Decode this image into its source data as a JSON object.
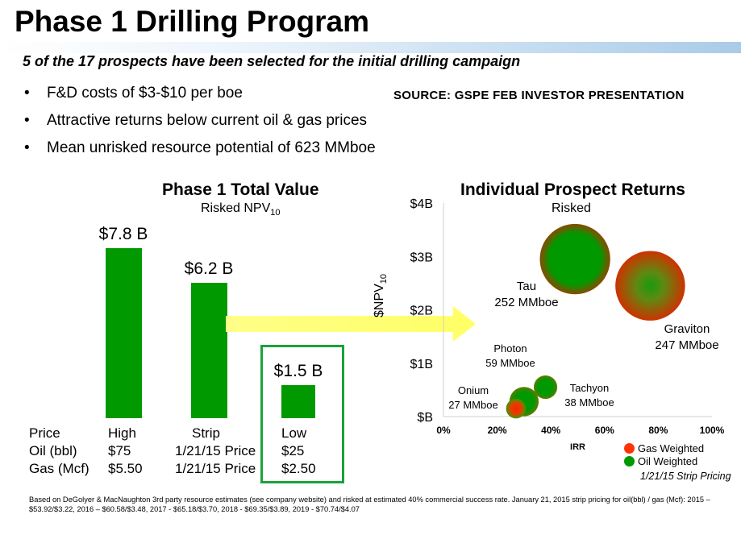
{
  "title": "Phase 1 Drilling Program",
  "subtitle": "5 of the 17 prospects have been selected for the initial drilling campaign",
  "bullets": [
    "F&D costs of $3-$10 per boe",
    "Attractive returns below current oil & gas prices",
    "Mean unrisked resource potential of 623 MMboe"
  ],
  "source": "SOURCE: GSPE FEB INVESTOR PRESENTATION",
  "left_chart": {
    "title": "Phase 1 Total Value",
    "subtitle": "Risked NPV",
    "subtitle_sub": "10"
  },
  "price_table": {
    "row_labels": [
      "Price",
      "Oil (bbl)",
      "Gas (Mcf)"
    ],
    "columns": [
      {
        "header": "High",
        "oil": "$75",
        "gas": "$5.50"
      },
      {
        "header": "Strip",
        "oil": "1/21/15 Price",
        "gas": "1/21/15 Price"
      },
      {
        "header": "Low",
        "oil": "$25",
        "gas": "$2.50"
      }
    ]
  },
  "right_chart": {
    "title": "Individual Prospect Returns",
    "subtitle": "Risked",
    "ylabel": "$NPV",
    "ylabel_sub": "10",
    "xlabel": "IRR"
  },
  "legend": {
    "gas": "Gas Weighted",
    "oil": "Oil Weighted",
    "note": "1/21/15 Strip Pricing",
    "gas_color": "#ff3300",
    "oil_color": "#009900"
  },
  "footnote": "Based on DeGolyer & MacNaughton 3rd party resource estimates (see company website) and risked at estimated 40% commercial success rate.  January 21, 2015 strip pricing for oil(bbl) / gas (Mcf): 2015 – $53.92/$3.22, 2016 – $60.58/$3.48, 2017 - $65.18/$3.70, 2018 - $69.35/$3.89, 2019 - $70.74/$4.07",
  "chart_data": [
    {
      "type": "bar",
      "title": "Phase 1 Total Value",
      "subtitle": "Risked NPV10",
      "categories": [
        "High",
        "Strip",
        "Low"
      ],
      "values": [
        7.8,
        6.2,
        1.5
      ],
      "data_labels": [
        "$7.8 B",
        "$6.2 B",
        "$1.5 B"
      ],
      "unit": "$B",
      "highlighted": "Low",
      "color": "#009900"
    },
    {
      "type": "scatter",
      "title": "Individual Prospect Returns",
      "subtitle": "Risked",
      "xlabel": "IRR",
      "ylabel": "$NPV10",
      "xlim": [
        0,
        100
      ],
      "ylim": [
        0,
        4
      ],
      "x_ticks": [
        "0%",
        "20%",
        "40%",
        "60%",
        "80%",
        "100%"
      ],
      "y_ticks": [
        "$B",
        "$1B",
        "$2B",
        "$3B",
        "$4B"
      ],
      "grid": false,
      "legend_position": "bottom-right",
      "points": [
        {
          "name": "Tau",
          "label2": "252 MMboe",
          "x": 49,
          "y": 2.95,
          "size": 252,
          "weighting": "oil"
        },
        {
          "name": "Graviton",
          "label2": "247 MMboe",
          "x": 77,
          "y": 2.45,
          "size": 247,
          "weighting": "mixed"
        },
        {
          "name": "Photon",
          "label2": "59 MMboe",
          "x": 30,
          "y": 0.28,
          "size": 59,
          "weighting": "oil"
        },
        {
          "name": "Tachyon",
          "label2": "38 MMboe",
          "x": 38,
          "y": 0.55,
          "size": 38,
          "weighting": "oil"
        },
        {
          "name": "Onium",
          "label2": "27 MMboe",
          "x": 27,
          "y": 0.15,
          "size": 27,
          "weighting": "gas"
        }
      ]
    }
  ]
}
